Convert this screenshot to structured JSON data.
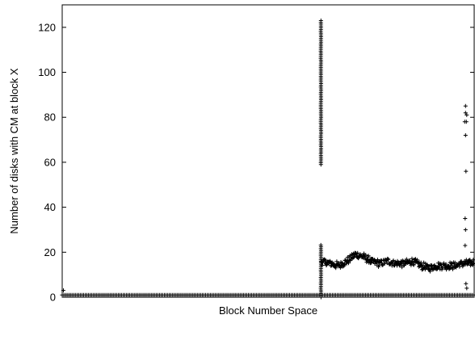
{
  "chart_data": {
    "type": "scatter",
    "title": "",
    "xlabel": "Block Number Space",
    "ylabel": "Number of disks with CM at block X",
    "xlim": [
      0,
      1000
    ],
    "ylim": [
      0,
      130
    ],
    "xticks_shown": false,
    "yticks": [
      0,
      20,
      40,
      60,
      80,
      100,
      120
    ],
    "ytick_labels": [
      "0",
      "20",
      "40",
      "60",
      "80",
      "100",
      "120"
    ],
    "grid": false,
    "legend": "none",
    "marker": "plus",
    "color": "#000000",
    "series": [
      {
        "segments": [
          {
            "description_values": "baseline",
            "x_range": [
              0,
              1000
            ],
            "y": 1
          },
          {
            "description_values": "vertical-band",
            "x": 628,
            "y_range": [
              59,
              123
            ]
          },
          {
            "description_values": "vertical-band-low",
            "x": 628,
            "y_range": [
              0,
              24
            ]
          },
          {
            "description_values": "plateau",
            "x_range": [
              628,
              1000
            ],
            "y_profile": [
              [
                628,
                16
              ],
              [
                650,
                15
              ],
              [
                670,
                14
              ],
              [
                690,
                16
              ],
              [
                710,
                19
              ],
              [
                730,
                18
              ],
              [
                750,
                16
              ],
              [
                770,
                15
              ],
              [
                790,
                16
              ],
              [
                810,
                15
              ],
              [
                830,
                15
              ],
              [
                850,
                16
              ],
              [
                870,
                14
              ],
              [
                890,
                13
              ],
              [
                910,
                14
              ],
              [
                930,
                14
              ],
              [
                950,
                14
              ],
              [
                970,
                15
              ],
              [
                990,
                15
              ],
              [
                1000,
                16
              ]
            ]
          },
          {
            "description_values": "outliers",
            "points": [
              [
                979,
                85
              ],
              [
                979,
                82
              ],
              [
                982,
                81
              ],
              [
                977,
                78
              ],
              [
                981,
                78
              ],
              [
                979,
                72
              ],
              [
                980,
                56
              ],
              [
                978,
                35
              ],
              [
                979,
                30
              ],
              [
                978,
                23
              ],
              [
                980,
                6
              ],
              [
                982,
                4
              ],
              [
                3,
                3
              ]
            ]
          }
        ]
      }
    ]
  }
}
